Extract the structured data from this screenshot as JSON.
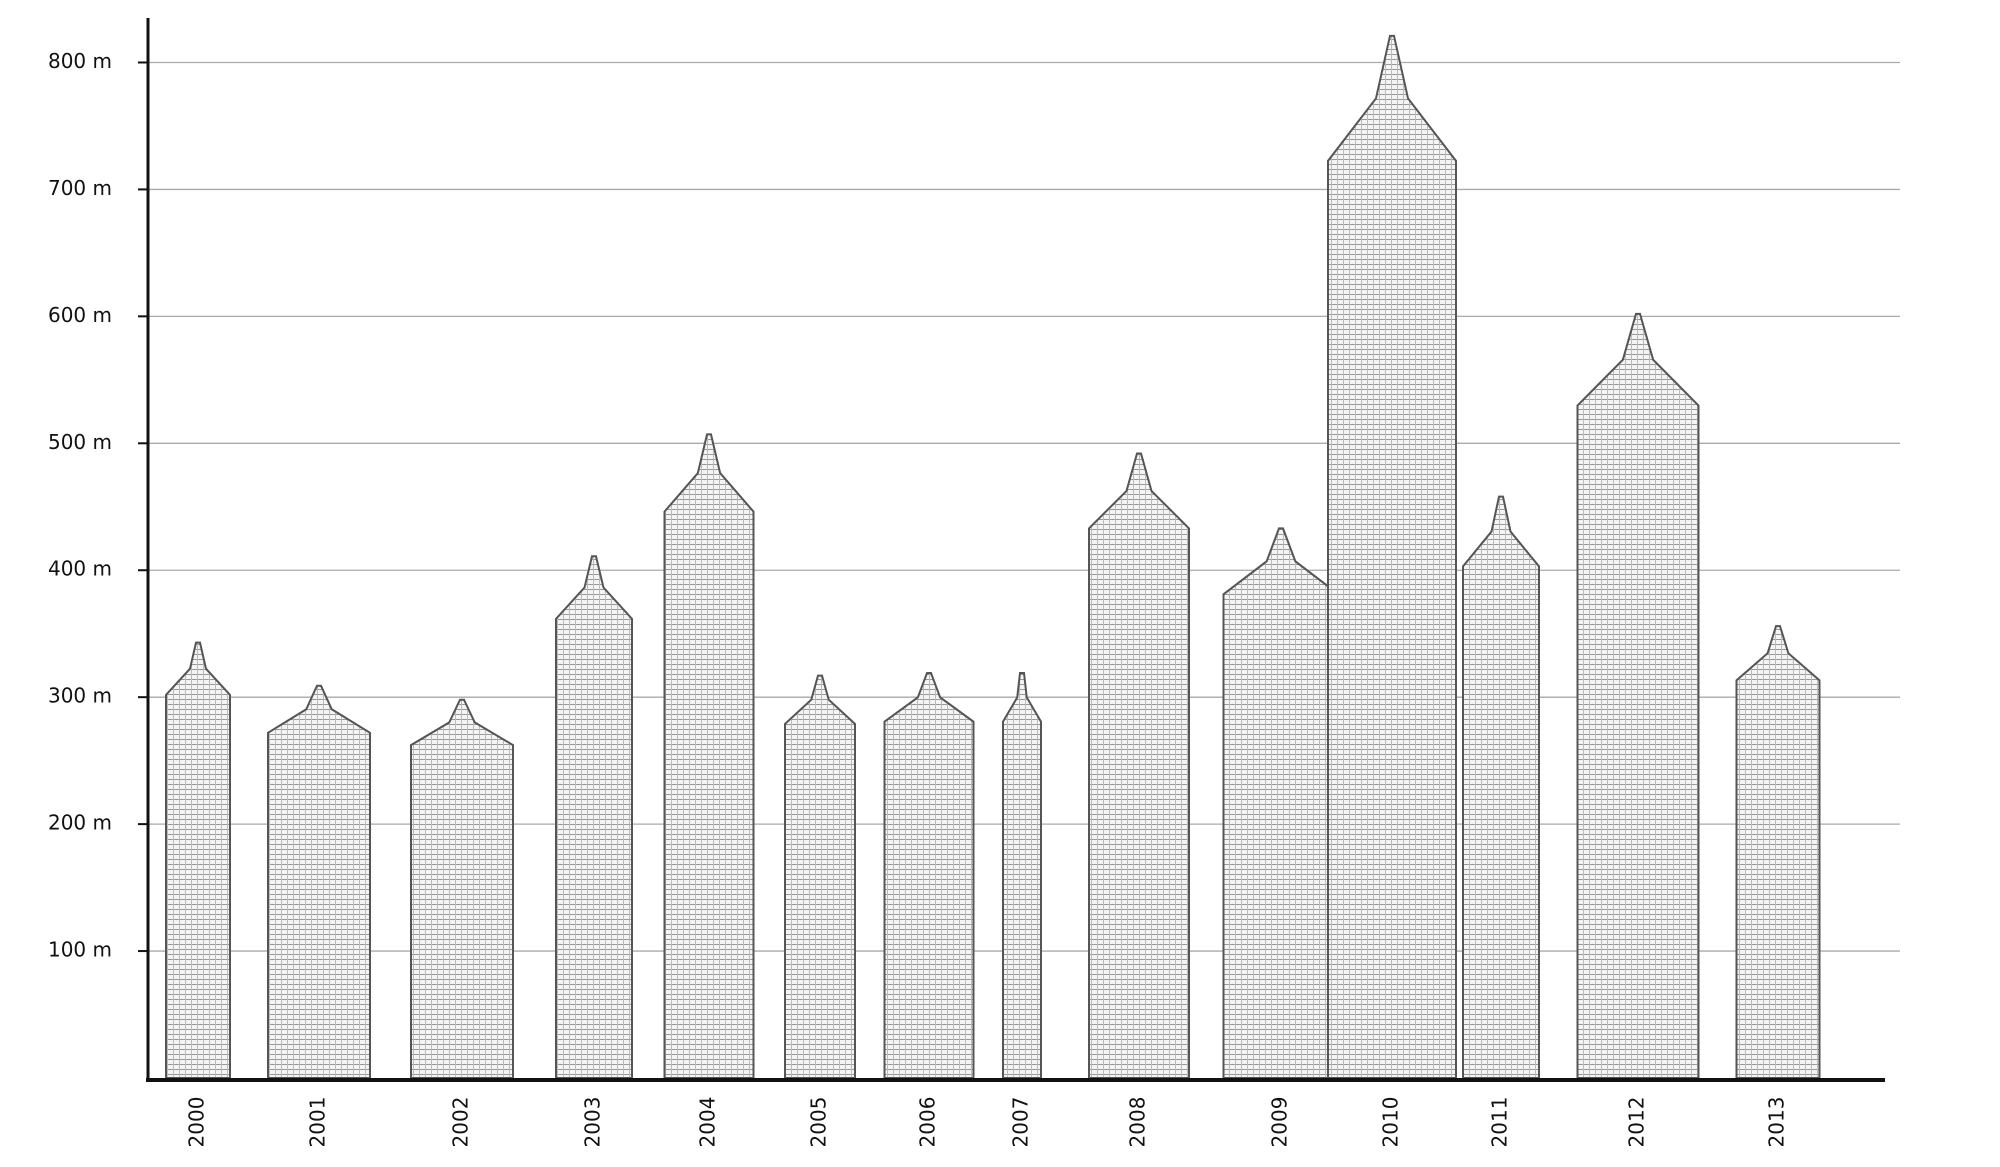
{
  "chart_data": {
    "type": "bar",
    "categories": [
      "2000",
      "2001",
      "2002",
      "2003",
      "2004",
      "2005",
      "2006",
      "2007",
      "2008",
      "2009",
      "2010",
      "2011",
      "2012",
      "2013"
    ],
    "values": [
      343,
      309,
      298,
      411,
      507,
      317,
      319,
      319,
      492,
      433,
      821,
      458,
      602,
      356
    ],
    "color": "#555555",
    "ylim": [
      0,
      840
    ],
    "yticks": [
      {
        "value": 100,
        "label": "100 m"
      },
      {
        "value": 200,
        "label": "200 m"
      },
      {
        "value": 300,
        "label": "300 m"
      },
      {
        "value": 400,
        "label": "400 m"
      },
      {
        "value": 500,
        "label": "500 m"
      },
      {
        "value": 600,
        "label": "600 m"
      },
      {
        "value": 700,
        "label": "700 m"
      },
      {
        "value": 800,
        "label": "800 m"
      }
    ],
    "grid": true
  }
}
